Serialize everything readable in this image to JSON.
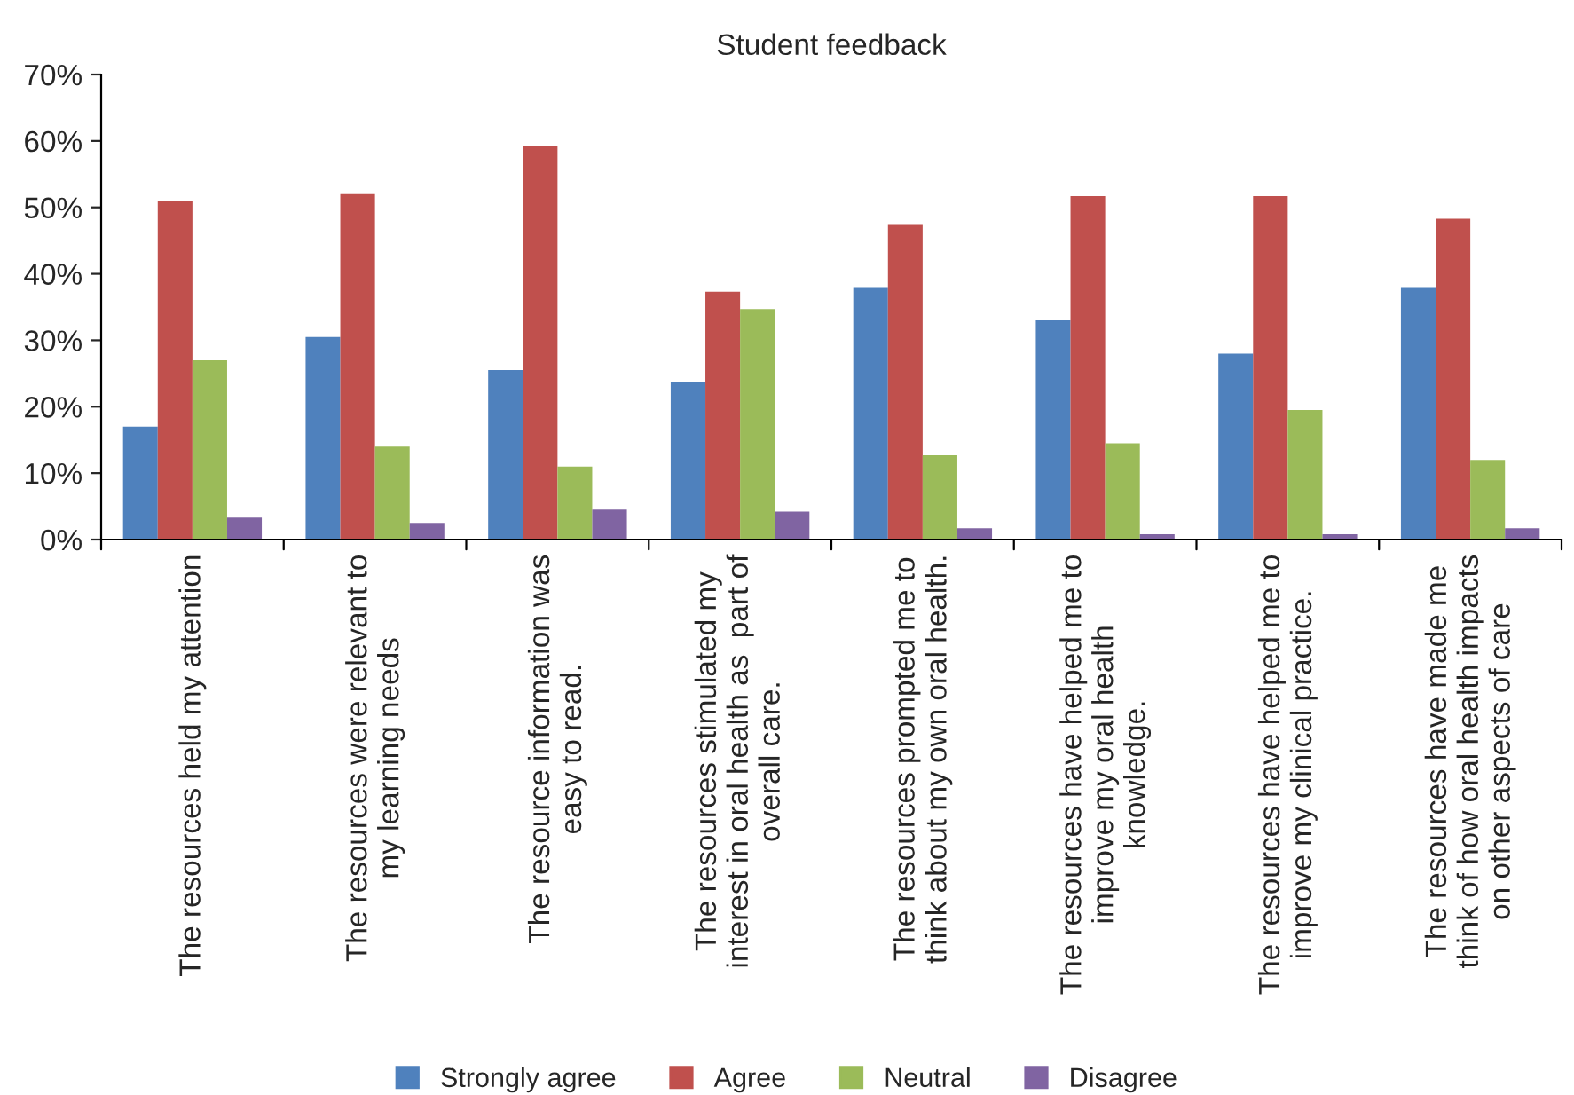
{
  "chart_data": {
    "type": "bar",
    "title": "Student feedback",
    "categories": [
      "The resources held my attention",
      "The resources were relevant to\nmy learning needs",
      "The resource information was\neasy to read.",
      "The resources stimulated my\ninterest in oral health as  part of\noverall care.",
      "The resources prompted me to\nthink about my own oral health.",
      "The resources have helped me to\nimprove my oral health\nknowledge.",
      "The resources have helped me to\nimprove my clinical practice.",
      "The resources have made me\nthink of how oral health impacts\non other aspects of care"
    ],
    "series": [
      {
        "name": "Strongly agree",
        "color": "#4f81bd",
        "values": [
          17,
          30.5,
          25.5,
          23.7,
          38,
          33,
          28,
          38
        ]
      },
      {
        "name": "Agree",
        "color": "#c0504d",
        "values": [
          51,
          52,
          59.3,
          37.3,
          47.5,
          51.7,
          51.7,
          48.3
        ]
      },
      {
        "name": "Neutral",
        "color": "#9bbb59",
        "values": [
          27,
          14,
          11,
          34.7,
          12.7,
          14.5,
          19.5,
          12
        ]
      },
      {
        "name": "Disagree",
        "color": "#8064a2",
        "values": [
          3.3,
          2.5,
          4.5,
          4.2,
          1.7,
          0.8,
          0.8,
          1.7
        ]
      }
    ],
    "ylim": [
      0,
      70
    ],
    "yticks": [
      {
        "value": 0,
        "label": "0%"
      },
      {
        "value": 10,
        "label": "10%"
      },
      {
        "value": 20,
        "label": "20%"
      },
      {
        "value": 30,
        "label": "30%"
      },
      {
        "value": 40,
        "label": "40%"
      },
      {
        "value": 50,
        "label": "50%"
      },
      {
        "value": 60,
        "label": "60%"
      },
      {
        "value": 70,
        "label": "70%"
      }
    ],
    "grid": false,
    "legend": "bottom"
  }
}
